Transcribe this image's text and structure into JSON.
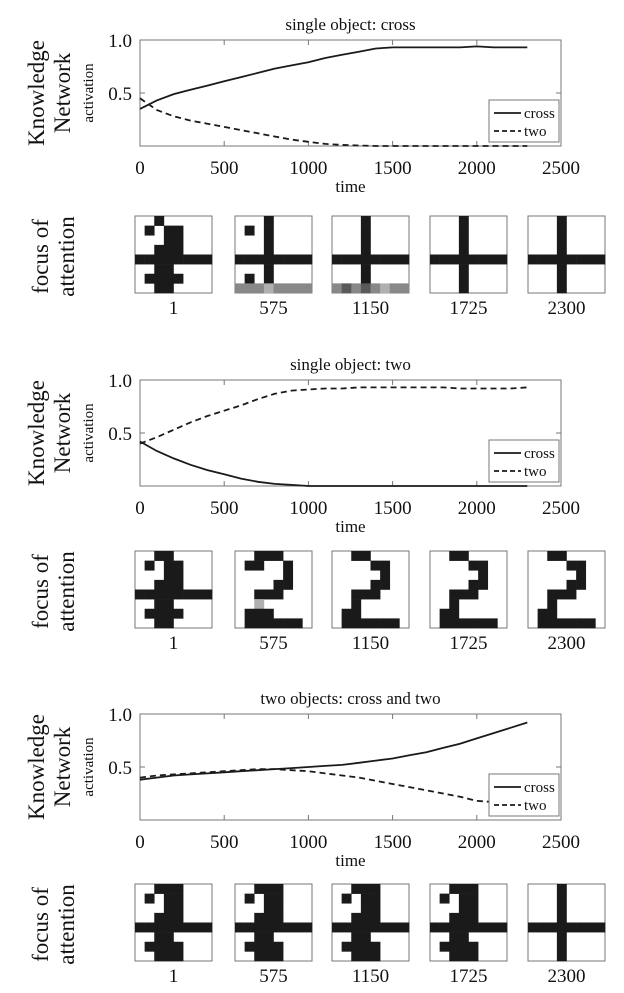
{
  "chart_data": [
    {
      "type": "line",
      "title": "single object: cross",
      "xlabel": "time",
      "ylabel": [
        "Knowledge",
        "Network",
        "activation"
      ],
      "xlim": [
        0,
        2500
      ],
      "ylim": [
        0,
        1
      ],
      "xticks": [
        "0",
        "500",
        "1000",
        "1500",
        "2000",
        "2500"
      ],
      "yticks": [
        "0.5",
        "1.0"
      ],
      "legend_position": "bottom-right",
      "series": [
        {
          "name": "cross",
          "style": "solid",
          "x": [
            0,
            100,
            200,
            300,
            400,
            500,
            600,
            700,
            800,
            900,
            1000,
            1100,
            1200,
            1300,
            1400,
            1500,
            1600,
            1700,
            1800,
            1900,
            2000,
            2100,
            2200,
            2300
          ],
          "y": [
            0.35,
            0.43,
            0.49,
            0.53,
            0.57,
            0.61,
            0.65,
            0.69,
            0.73,
            0.76,
            0.79,
            0.83,
            0.86,
            0.89,
            0.92,
            0.93,
            0.93,
            0.93,
            0.93,
            0.93,
            0.94,
            0.93,
            0.93,
            0.93
          ]
        },
        {
          "name": "two",
          "style": "dashed",
          "x": [
            0,
            100,
            200,
            300,
            400,
            500,
            600,
            700,
            800,
            900,
            1000,
            1100,
            1200,
            1300,
            1400,
            1500,
            1600,
            1700,
            1800,
            1900,
            2000,
            2100,
            2200,
            2300
          ],
          "y": [
            0.45,
            0.34,
            0.28,
            0.24,
            0.21,
            0.18,
            0.15,
            0.12,
            0.09,
            0.06,
            0.04,
            0.02,
            0.01,
            0.005,
            0.0,
            0.0,
            0.0,
            0.0,
            0.0,
            0.0,
            0.0,
            0.0,
            0.0,
            0.0
          ]
        }
      ]
    },
    {
      "type": "line",
      "title": "single object: two",
      "xlabel": "time",
      "ylabel": [
        "Knowledge",
        "Network",
        "activation"
      ],
      "xlim": [
        0,
        2500
      ],
      "ylim": [
        0,
        1
      ],
      "xticks": [
        "0",
        "500",
        "1000",
        "1500",
        "2000",
        "2500"
      ],
      "yticks": [
        "0.5",
        "1.0"
      ],
      "legend_position": "bottom-right",
      "series": [
        {
          "name": "cross",
          "style": "solid",
          "x": [
            0,
            100,
            200,
            300,
            400,
            500,
            600,
            700,
            800,
            900,
            1000,
            1100,
            1200,
            1300,
            1400,
            1500,
            1600,
            1700,
            1800,
            1900,
            2000,
            2100,
            2200,
            2300
          ],
          "y": [
            0.42,
            0.33,
            0.26,
            0.2,
            0.15,
            0.11,
            0.07,
            0.04,
            0.02,
            0.01,
            0.0,
            0.0,
            0.0,
            0.0,
            0.0,
            0.0,
            0.0,
            0.0,
            0.0,
            0.0,
            0.0,
            0.0,
            0.0,
            0.0
          ]
        },
        {
          "name": "two",
          "style": "dashed",
          "x": [
            0,
            100,
            200,
            300,
            400,
            500,
            600,
            700,
            800,
            900,
            1000,
            1100,
            1200,
            1300,
            1400,
            1500,
            1600,
            1700,
            1800,
            1900,
            2000,
            2100,
            2200,
            2300
          ],
          "y": [
            0.4,
            0.46,
            0.53,
            0.6,
            0.66,
            0.71,
            0.76,
            0.82,
            0.87,
            0.9,
            0.91,
            0.92,
            0.92,
            0.93,
            0.93,
            0.93,
            0.93,
            0.93,
            0.93,
            0.92,
            0.92,
            0.92,
            0.92,
            0.93
          ]
        }
      ]
    },
    {
      "type": "line",
      "title": "two objects: cross and two",
      "xlabel": "time",
      "ylabel": [
        "Knowledge",
        "Network",
        "activation"
      ],
      "xlim": [
        0,
        2500
      ],
      "ylim": [
        0,
        1
      ],
      "xticks": [
        "0",
        "500",
        "1000",
        "1500",
        "2000",
        "2500"
      ],
      "yticks": [
        "0.5",
        "1.0"
      ],
      "legend_position": "bottom-right",
      "series": [
        {
          "name": "cross",
          "style": "solid",
          "x": [
            0,
            100,
            200,
            300,
            400,
            500,
            600,
            700,
            800,
            900,
            1000,
            1100,
            1200,
            1300,
            1400,
            1500,
            1600,
            1700,
            1800,
            1900,
            2000,
            2100,
            2200,
            2300
          ],
          "y": [
            0.38,
            0.4,
            0.42,
            0.43,
            0.44,
            0.45,
            0.46,
            0.47,
            0.48,
            0.49,
            0.5,
            0.51,
            0.52,
            0.54,
            0.56,
            0.58,
            0.61,
            0.64,
            0.68,
            0.72,
            0.77,
            0.82,
            0.87,
            0.92
          ]
        },
        {
          "name": "two",
          "style": "dashed",
          "x": [
            0,
            100,
            200,
            300,
            400,
            500,
            600,
            700,
            800,
            900,
            1000,
            1100,
            1200,
            1300,
            1400,
            1500,
            1600,
            1700,
            1800,
            1900,
            2000,
            2100,
            2200,
            2300
          ],
          "y": [
            0.4,
            0.42,
            0.43,
            0.44,
            0.45,
            0.46,
            0.47,
            0.48,
            0.48,
            0.47,
            0.46,
            0.44,
            0.42,
            0.4,
            0.37,
            0.34,
            0.31,
            0.28,
            0.25,
            0.22,
            0.18,
            0.17,
            0.17,
            0.17
          ]
        }
      ]
    }
  ],
  "attention_rows": [
    {
      "label": [
        "focus of",
        "attention"
      ],
      "frames": [
        {
          "time": "1",
          "pattern": [
            "00100000",
            "01011000",
            "00011000",
            "00111000",
            "11111111",
            "00110000",
            "01111000",
            "00110000"
          ]
        },
        {
          "time": "575",
          "pattern": [
            "00010000",
            "01010000",
            "00010000",
            "00010000",
            "11111111",
            "00010000",
            "01010000",
            "22232222"
          ]
        },
        {
          "time": "1150",
          "pattern": [
            "00010000",
            "00010000",
            "00010000",
            "00010000",
            "11111111",
            "00010000",
            "00010000",
            "24242322"
          ]
        },
        {
          "time": "1725",
          "pattern": [
            "00010000",
            "00010000",
            "00010000",
            "00010000",
            "11111111",
            "00010000",
            "00010000",
            "00010000"
          ]
        },
        {
          "time": "2300",
          "pattern": [
            "00010000",
            "00010000",
            "00010000",
            "00010000",
            "11111111",
            "00010000",
            "00010000",
            "00010000"
          ]
        }
      ]
    },
    {
      "label": [
        "focus of",
        "attention"
      ],
      "frames": [
        {
          "time": "1",
          "pattern": [
            "00110000",
            "01011000",
            "00011000",
            "00111000",
            "11111111",
            "00110000",
            "01111000",
            "00110000"
          ]
        },
        {
          "time": "575",
          "pattern": [
            "00111000",
            "01100100",
            "00000100",
            "00001100",
            "00111000",
            "00300000",
            "01110000",
            "01111110"
          ]
        },
        {
          "time": "1150",
          "pattern": [
            "00110000",
            "00001100",
            "00000100",
            "00001100",
            "00111000",
            "00100000",
            "01100000",
            "01111110"
          ]
        },
        {
          "time": "1725",
          "pattern": [
            "00110000",
            "00001100",
            "00000100",
            "00001100",
            "00111000",
            "00100000",
            "01100000",
            "01111110"
          ]
        },
        {
          "time": "2300",
          "pattern": [
            "00110000",
            "00001100",
            "00000100",
            "00001100",
            "00111000",
            "00100000",
            "01100000",
            "01111110"
          ]
        }
      ]
    },
    {
      "label": [
        "focus of",
        "attention"
      ],
      "frames": [
        {
          "time": "1",
          "pattern": [
            "00111000",
            "01011000",
            "00011000",
            "00111000",
            "11111111",
            "00110000",
            "01111000",
            "00111000"
          ]
        },
        {
          "time": "575",
          "pattern": [
            "00111000",
            "01011000",
            "00011000",
            "00111000",
            "11111111",
            "00110000",
            "01111000",
            "00111000"
          ]
        },
        {
          "time": "1150",
          "pattern": [
            "00111000",
            "01011000",
            "00011000",
            "00111000",
            "11111111",
            "00110000",
            "01111000",
            "00111000"
          ]
        },
        {
          "time": "1725",
          "pattern": [
            "00111000",
            "01011000",
            "00011000",
            "00111000",
            "11111111",
            "00110000",
            "01111000",
            "00111000"
          ]
        },
        {
          "time": "2300",
          "pattern": [
            "00010000",
            "00010000",
            "00010000",
            "00010000",
            "11111111",
            "00010000",
            "00010000",
            "00010000"
          ]
        }
      ]
    }
  ],
  "colors": {
    "ink": "#1a1a1a",
    "light_gray": "#b0b0b0",
    "mid_gray": "#888888",
    "dark_gray": "#5a5a5a",
    "frame": "#777777"
  }
}
